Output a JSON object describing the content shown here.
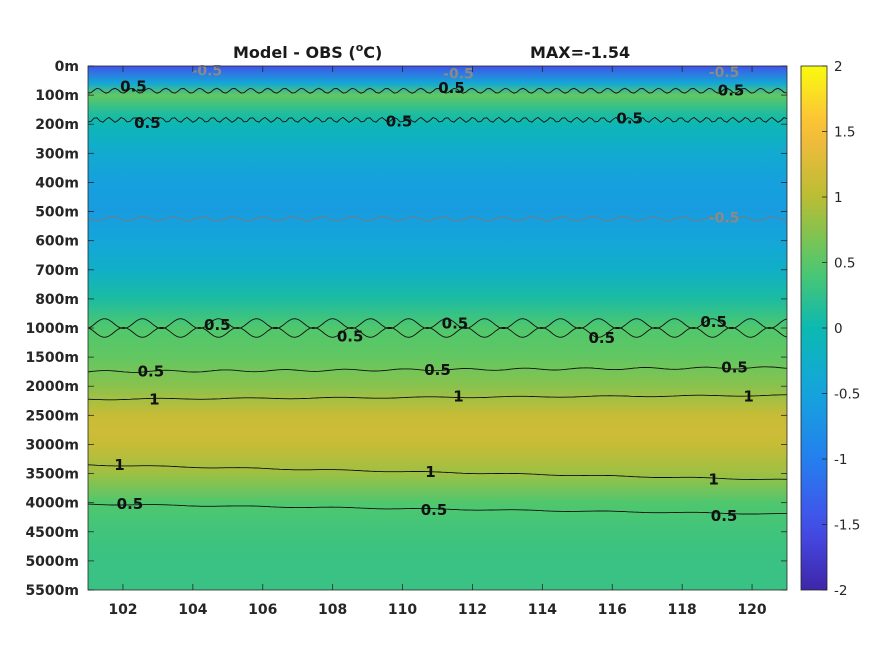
{
  "chart_data": {
    "type": "heatmap",
    "title": "Model - OBS (",
    "title_superscript": "o",
    "title_unit": "C)",
    "max_label": "MAX=-1.54",
    "colormap": "parula",
    "x_ticks": [
      "102",
      "104",
      "106",
      "108",
      "110",
      "112",
      "114",
      "116",
      "118",
      "120"
    ],
    "xlim": [
      101,
      121
    ],
    "y_ticks": [
      "0m",
      "100m",
      "200m",
      "300m",
      "400m",
      "500m",
      "600m",
      "700m",
      "800m",
      "1000m",
      "1500m",
      "2000m",
      "2500m",
      "3000m",
      "3500m",
      "4000m",
      "4500m",
      "5000m",
      "5500m"
    ],
    "colorbar": {
      "ticks": [
        "2",
        "1.5",
        "1",
        "0.5",
        "0",
        "-0.5",
        "-1",
        "-1.5",
        "-2"
      ],
      "range": [
        -2,
        2
      ]
    },
    "depth_profile": [
      {
        "level": 0.0,
        "value": -1.45
      },
      {
        "level": 0.6,
        "value": -0.4
      },
      {
        "level": 1.0,
        "value": 0.55
      },
      {
        "level": 1.6,
        "value": 0.15
      },
      {
        "level": 2.0,
        "value": -0.05
      },
      {
        "level": 3.0,
        "value": -0.35
      },
      {
        "level": 4.0,
        "value": -0.55
      },
      {
        "level": 5.0,
        "value": -0.6
      },
      {
        "level": 6.0,
        "value": -0.45
      },
      {
        "level": 7.0,
        "value": -0.25
      },
      {
        "level": 8.0,
        "value": 0.1
      },
      {
        "level": 9.0,
        "value": 0.45
      },
      {
        "level": 10.0,
        "value": 0.55
      },
      {
        "level": 11.0,
        "value": 0.75
      },
      {
        "level": 12.0,
        "value": 1.1
      },
      {
        "level": 12.5,
        "value": 1.15
      },
      {
        "level": 13.0,
        "value": 1.1
      },
      {
        "level": 14.0,
        "value": 0.85
      },
      {
        "level": 15.0,
        "value": 0.45
      },
      {
        "level": 16.0,
        "value": 0.35
      },
      {
        "level": 17.0,
        "value": 0.3
      },
      {
        "level": 18.0,
        "value": 0.3
      }
    ],
    "contour_labels": [
      {
        "text": "0.5",
        "x": 102.3,
        "level": 0.7
      },
      {
        "text": "0.5",
        "x": 111.4,
        "level": 0.75
      },
      {
        "text": "0.5",
        "x": 119.4,
        "level": 0.85
      },
      {
        "text": "0.5",
        "x": 102.7,
        "level": 1.95
      },
      {
        "text": "0.5",
        "x": 109.9,
        "level": 1.9
      },
      {
        "text": "0.5",
        "x": 116.5,
        "level": 1.8
      },
      {
        "text": "0.5",
        "x": 104.7,
        "level": 8.9
      },
      {
        "text": "0.5",
        "x": 108.5,
        "level": 9.3
      },
      {
        "text": "0.5",
        "x": 111.5,
        "level": 8.85
      },
      {
        "text": "0.5",
        "x": 115.7,
        "level": 9.35
      },
      {
        "text": "0.5",
        "x": 118.9,
        "level": 8.8
      },
      {
        "text": "0.5",
        "x": 102.8,
        "level": 10.5
      },
      {
        "text": "0.5",
        "x": 111.0,
        "level": 10.45
      },
      {
        "text": "0.5",
        "x": 119.5,
        "level": 10.35
      },
      {
        "text": "1",
        "x": 102.9,
        "level": 11.45
      },
      {
        "text": "1",
        "x": 111.6,
        "level": 11.35
      },
      {
        "text": "1",
        "x": 119.9,
        "level": 11.35
      },
      {
        "text": "1",
        "x": 101.9,
        "level": 13.7
      },
      {
        "text": "1",
        "x": 110.8,
        "level": 13.95
      },
      {
        "text": "1",
        "x": 118.9,
        "level": 14.2
      },
      {
        "text": "0.5",
        "x": 102.2,
        "level": 15.05
      },
      {
        "text": "0.5",
        "x": 110.9,
        "level": 15.25
      },
      {
        "text": "0.5",
        "x": 119.2,
        "level": 15.45
      }
    ],
    "negative_contour_labels": [
      {
        "text": "-0.5",
        "x": 104.4,
        "level": 0.15
      },
      {
        "text": "-0.5",
        "x": 111.6,
        "level": 0.25
      },
      {
        "text": "-0.5",
        "x": 119.2,
        "level": 0.2
      },
      {
        "text": "-0.5",
        "x": 119.2,
        "level": 5.2
      }
    ]
  }
}
